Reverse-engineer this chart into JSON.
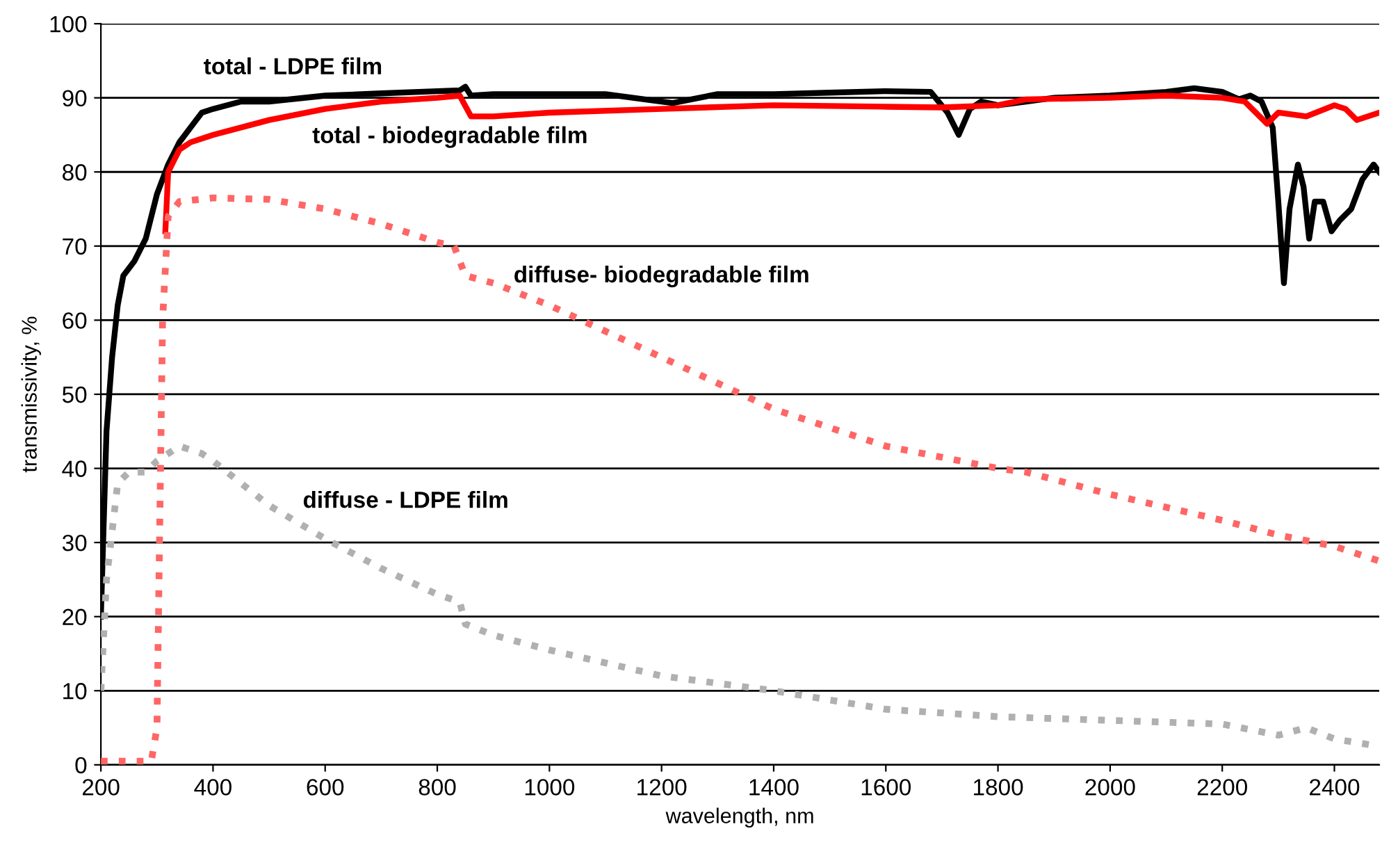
{
  "chart_data": {
    "type": "line",
    "xlabel": "wavelength, nm",
    "ylabel": "transmissivity, %",
    "xlim": [
      200,
      2480
    ],
    "xticks": [
      200,
      400,
      600,
      800,
      1000,
      1200,
      1400,
      1600,
      1800,
      2000,
      2200,
      2400
    ],
    "ylim": [
      0,
      100
    ],
    "yticks": [
      0,
      10,
      20,
      30,
      40,
      50,
      60,
      70,
      80,
      90,
      100
    ],
    "grid": "y",
    "marker": "none",
    "series": [
      {
        "name": "total - LDPE film",
        "color": "#000000",
        "line_style": "solid",
        "x": [
          200,
          210,
          220,
          230,
          240,
          260,
          280,
          300,
          320,
          340,
          360,
          380,
          400,
          450,
          500,
          600,
          700,
          800,
          840,
          850,
          860,
          900,
          1000,
          1100,
          1200,
          1220,
          1300,
          1400,
          1500,
          1600,
          1680,
          1710,
          1730,
          1750,
          1770,
          1800,
          1850,
          1900,
          2000,
          2100,
          2150,
          2200,
          2230,
          2250,
          2270,
          2290,
          2300,
          2310,
          2320,
          2335,
          2345,
          2355,
          2365,
          2380,
          2395,
          2410,
          2430,
          2450,
          2470,
          2480
        ],
        "values": [
          20,
          45,
          55,
          62,
          66,
          68,
          71,
          77,
          81,
          84,
          86,
          88,
          88.5,
          89.5,
          89.5,
          90.3,
          90.6,
          90.9,
          91,
          91.5,
          90.3,
          90.5,
          90.5,
          90.5,
          89.5,
          89.3,
          90.5,
          90.5,
          90.7,
          90.9,
          90.8,
          88,
          85,
          88.5,
          89.5,
          89,
          89.5,
          90,
          90.3,
          90.8,
          91.3,
          90.8,
          89.8,
          90.3,
          89.5,
          86,
          76,
          65,
          75,
          81,
          78,
          71,
          76,
          76,
          72,
          73.5,
          75,
          79,
          81,
          80
        ]
      },
      {
        "name": "total - biodegradable film",
        "color": "#ff0000",
        "line_style": "solid",
        "x": [
          315,
          320,
          340,
          360,
          400,
          500,
          600,
          700,
          800,
          840,
          860,
          900,
          1000,
          1200,
          1400,
          1600,
          1700,
          1800,
          1850,
          2000,
          2100,
          2200,
          2240,
          2280,
          2300,
          2350,
          2400,
          2420,
          2440,
          2480
        ],
        "values": [
          72,
          80,
          83,
          84,
          85,
          87,
          88.5,
          89.5,
          90,
          90.3,
          87.5,
          87.5,
          88,
          88.5,
          89,
          88.8,
          88.7,
          89,
          89.8,
          90,
          90.3,
          90,
          89.5,
          86.5,
          88,
          87.5,
          89,
          88.5,
          87,
          88
        ]
      },
      {
        "name": "diffuse- biodegradable film",
        "color": "#ff6666",
        "line_style": "dotted",
        "x": [
          200,
          290,
          300,
          310,
          320,
          340,
          400,
          500,
          600,
          700,
          800,
          830,
          850,
          900,
          1000,
          1200,
          1400,
          1600,
          1800,
          1850,
          2000,
          2200,
          2300,
          2400,
          2480
        ],
        "values": [
          0.5,
          0.5,
          5,
          60,
          74,
          76,
          76.5,
          76.3,
          75,
          73,
          70.5,
          70,
          66,
          65,
          62,
          55,
          48,
          43,
          40,
          39.5,
          36.5,
          33,
          31,
          29.5,
          27.5
        ]
      },
      {
        "name": "diffuse - LDPE film",
        "color": "#b0b0b0",
        "line_style": "dotted",
        "x": [
          200,
          210,
          230,
          250,
          280,
          300,
          340,
          380,
          400,
          500,
          600,
          700,
          800,
          840,
          850,
          900,
          1000,
          1200,
          1400,
          1600,
          1800,
          2000,
          2200,
          2300,
          2350,
          2400,
          2480
        ],
        "values": [
          10,
          25,
          38,
          39.5,
          39.5,
          41,
          43,
          42,
          41,
          35,
          30.5,
          26.5,
          23,
          22,
          19,
          17.5,
          15.5,
          12,
          10,
          7.5,
          6.5,
          6,
          5.5,
          4,
          5,
          3.5,
          2.5
        ]
      }
    ]
  }
}
